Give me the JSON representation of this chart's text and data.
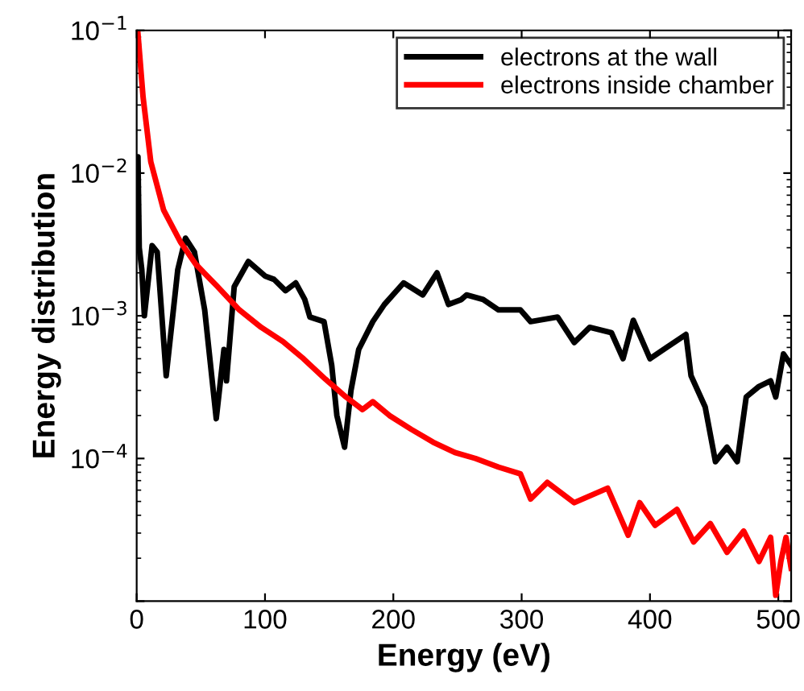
{
  "chart_data": {
    "type": "line",
    "xlabel": "Energy (eV)",
    "ylabel": "Energy distribution",
    "log": "y",
    "xlim": [
      0,
      510
    ],
    "xticks": [
      0,
      100,
      200,
      300,
      400,
      500
    ],
    "ylim": [
      1e-05,
      0.1
    ],
    "yticks": [
      {
        "value": 1e-05,
        "label": null
      },
      {
        "value": 0.0001,
        "label": "10$^{−4}$"
      },
      {
        "value": 0.001,
        "label": "10$^{−3}$"
      },
      {
        "value": 0.01,
        "label": "10$^{−2}$"
      },
      {
        "value": 0.1,
        "label": "10$^{−1}$"
      }
    ],
    "legend": "top right",
    "grid": false,
    "marker": "none",
    "line_style": "solid",
    "series": [
      {
        "name": "electrons at the wall",
        "color": "#000000",
        "x": [
          0,
          1,
          2,
          4,
          6,
          12,
          16,
          23,
          32,
          38,
          45,
          53,
          62,
          68,
          70,
          76,
          87,
          100,
          107,
          116,
          124,
          131,
          135,
          146,
          152,
          156,
          162,
          167,
          173,
          184,
          193,
          208,
          223,
          234,
          243,
          253,
          257,
          270,
          282,
          299,
          307,
          328,
          341,
          353,
          370,
          379,
          387,
          400,
          413,
          428,
          432,
          443,
          451,
          460,
          468,
          475,
          485,
          494,
          498,
          504,
          510
        ],
        "values": [
          0.003,
          0.013,
          0.003,
          0.0021,
          0.001,
          0.0031,
          0.0028,
          0.00038,
          0.0021,
          0.0035,
          0.0028,
          0.0011,
          0.00019,
          0.00058,
          0.00035,
          0.0016,
          0.0024,
          0.0019,
          0.0018,
          0.0015,
          0.0017,
          0.0013,
          0.00098,
          0.00091,
          0.00045,
          0.0002,
          0.00012,
          0.0003,
          0.00058,
          0.00091,
          0.0012,
          0.0017,
          0.0014,
          0.002,
          0.0012,
          0.0013,
          0.0014,
          0.0013,
          0.0011,
          0.0011,
          0.00091,
          0.00098,
          0.00065,
          0.00083,
          0.00076,
          0.0005,
          0.00093,
          0.0005,
          0.0006,
          0.00074,
          0.00038,
          0.00023,
          9.5e-05,
          0.00012,
          9.5e-05,
          0.00027,
          0.00032,
          0.00035,
          0.00027,
          0.00054,
          0.00045
        ]
      },
      {
        "name": "electrons inside chamber",
        "color": "#ff0000",
        "x": [
          1,
          5,
          11,
          21,
          34,
          46,
          63,
          80,
          97,
          114,
          130,
          147,
          163,
          176,
          184,
          197,
          214,
          231,
          248,
          264,
          282,
          299,
          307,
          320,
          341,
          367,
          383,
          392,
          404,
          421,
          434,
          447,
          460,
          473,
          485,
          494,
          498,
          502,
          506,
          510
        ],
        "values": [
          0.095,
          0.034,
          0.012,
          0.0055,
          0.0033,
          0.0023,
          0.0016,
          0.0011,
          0.00083,
          0.00066,
          0.0005,
          0.00036,
          0.00027,
          0.00022,
          0.00025,
          0.0002,
          0.00016,
          0.00013,
          0.00011,
          0.0001,
          8.7e-05,
          7.8e-05,
          5.2e-05,
          6.8e-05,
          4.9e-05,
          6.2e-05,
          2.9e-05,
          4.9e-05,
          3.4e-05,
          4.4e-05,
          2.6e-05,
          3.5e-05,
          2.2e-05,
          3.1e-05,
          1.9e-05,
          2.8e-05,
          1.1e-05,
          1.9e-05,
          2.8e-05,
          1.7e-05
        ]
      }
    ]
  }
}
